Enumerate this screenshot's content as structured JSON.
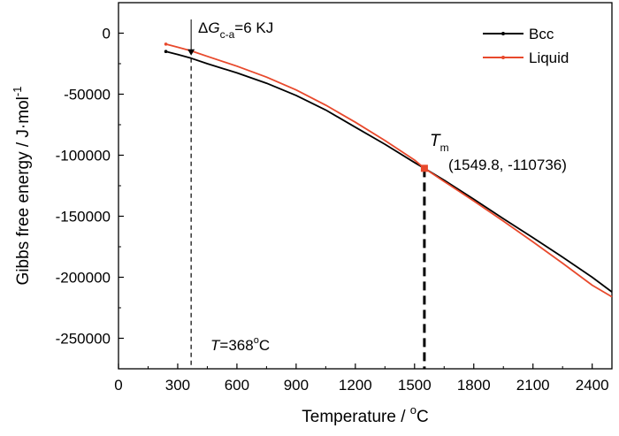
{
  "chart_data": {
    "type": "line",
    "xlabel": {
      "main": "Temperature / ",
      "sup": "o",
      "tail": "C"
    },
    "ylabel": {
      "main": "Gibbs free energy / J·mol",
      "sup": "-1"
    },
    "xlim": [
      0,
      2500
    ],
    "ylim": [
      -275000,
      25000
    ],
    "x_ticks": [
      0,
      300,
      600,
      900,
      1200,
      1500,
      1800,
      2100,
      2400
    ],
    "y_ticks": [
      0,
      -50000,
      -100000,
      -150000,
      -200000,
      -250000
    ],
    "grid": false,
    "legend_position": "top-right",
    "series": [
      {
        "name": "Bcc",
        "color": "#000000",
        "points": [
          [
            240,
            -15000
          ],
          [
            300,
            -17500
          ],
          [
            368,
            -20500
          ],
          [
            450,
            -25000
          ],
          [
            600,
            -32500
          ],
          [
            750,
            -41000
          ],
          [
            900,
            -51000
          ],
          [
            1050,
            -63000
          ],
          [
            1200,
            -77000
          ],
          [
            1350,
            -91000
          ],
          [
            1500,
            -106000
          ],
          [
            1549.8,
            -110736
          ],
          [
            1650,
            -120500
          ],
          [
            1800,
            -136000
          ],
          [
            1950,
            -152000
          ],
          [
            2100,
            -167500
          ],
          [
            2250,
            -183500
          ],
          [
            2400,
            -200000
          ],
          [
            2500,
            -212000
          ]
        ]
      },
      {
        "name": "Liquid",
        "color": "#e8492c",
        "points": [
          [
            240,
            -9000
          ],
          [
            300,
            -11500
          ],
          [
            368,
            -14500
          ],
          [
            450,
            -19000
          ],
          [
            600,
            -27000
          ],
          [
            750,
            -36000
          ],
          [
            900,
            -46500
          ],
          [
            1050,
            -59000
          ],
          [
            1200,
            -73000
          ],
          [
            1350,
            -88000
          ],
          [
            1500,
            -104000
          ],
          [
            1549.8,
            -110736
          ],
          [
            1650,
            -121500
          ],
          [
            1800,
            -137500
          ],
          [
            1950,
            -154000
          ],
          [
            2100,
            -171000
          ],
          [
            2250,
            -188500
          ],
          [
            2400,
            -206500
          ],
          [
            2500,
            -216000
          ]
        ]
      }
    ],
    "annotations": {
      "dg": {
        "delta": "Δ",
        "g": "G",
        "sub": "c-a",
        "value": "=6 KJ",
        "x": 368
      },
      "t_label": {
        "t": "T",
        "value": "=368",
        "sup": "o",
        "unit": "C"
      },
      "tm": {
        "t": "T",
        "sub": "m",
        "coords": "(1549.8, -110736)",
        "x": 1549.8,
        "y": -110736
      }
    }
  }
}
